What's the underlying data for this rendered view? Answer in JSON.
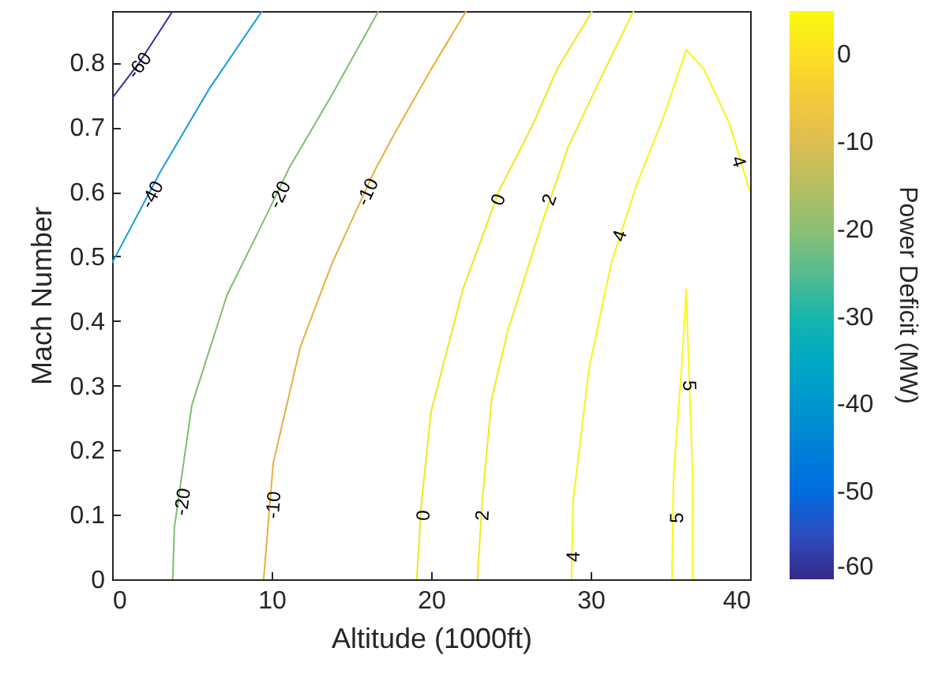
{
  "chart_data": {
    "type": "line",
    "xlabel": "Altitude (1000ft)",
    "ylabel": "Mach Number",
    "clabel": "Power Deficit (MW)",
    "xlim": [
      0,
      40
    ],
    "xticks": [
      0,
      10,
      20,
      30,
      40
    ],
    "ylim": [
      0,
      0.88
    ],
    "yticks": [
      0,
      0.1,
      0.2,
      0.3,
      0.4,
      0.5,
      0.6,
      0.7,
      0.8
    ],
    "clim": [
      -60,
      5
    ],
    "cticks": [
      -60,
      -50,
      -40,
      -30,
      -20,
      -10,
      0
    ],
    "grid": false,
    "series": [
      {
        "color": "#3d2a9e",
        "x": [
          0,
          1.7,
          3.8
        ],
        "values": [
          0.745,
          0.8,
          0.88
        ]
      },
      {
        "color": "#1a9ae0",
        "x": [
          0,
          3.0,
          6.1,
          9.4
        ],
        "values": [
          0.49,
          0.63,
          0.76,
          0.88
        ]
      },
      {
        "color": "#7dbf6e",
        "x": [
          3.8,
          3.9,
          5.0,
          7.2,
          9.5,
          11.1,
          13.8,
          16.7
        ],
        "values": [
          0,
          0.08,
          0.27,
          0.44,
          0.555,
          0.637,
          0.751,
          0.88
        ]
      },
      {
        "color": "#e9ae3e",
        "x": [
          9.5,
          10.1,
          11.8,
          13.8,
          16.4,
          17.7,
          20.0,
          22.2
        ],
        "values": [
          0,
          0.18,
          0.36,
          0.49,
          0.63,
          0.69,
          0.79,
          0.88
        ]
      },
      {
        "color": "#f0e61c",
        "x": [
          19.1,
          19.4,
          20.0,
          22.0,
          24.3,
          26.3,
          27.9,
          30.1
        ],
        "values": [
          0,
          0.12,
          0.26,
          0.45,
          0.604,
          0.7,
          0.79,
          0.88
        ]
      },
      {
        "color": "#f5ea18",
        "x": [
          22.9,
          23.2,
          23.8,
          24.8,
          27.0,
          28.6,
          30.9,
          32.7
        ],
        "values": [
          0,
          0.12,
          0.28,
          0.384,
          0.555,
          0.67,
          0.79,
          0.88
        ]
      },
      {
        "color": "#f8f215",
        "x": [
          28.8,
          28.9,
          29.9,
          31.3,
          32.9,
          34.6,
          36.0,
          37.1,
          38.7,
          40.0
        ],
        "values": [
          0,
          0.12,
          0.327,
          0.49,
          0.612,
          0.718,
          0.82,
          0.79,
          0.706,
          0.6
        ]
      },
      {
        "color": "#faf814",
        "x": [
          35.1,
          35.2,
          35.7,
          36.0,
          36.1,
          36.4,
          36.4
        ],
        "values": [
          0,
          0.16,
          0.327,
          0.449,
          0.368,
          0.16,
          0
        ]
      }
    ],
    "annotations": [
      {
        "text": "-60",
        "x": 1.7,
        "y": 0.796
      },
      {
        "text": "-40",
        "x": 2.5,
        "y": 0.596
      },
      {
        "text": "-20",
        "x": 10.5,
        "y": 0.596
      },
      {
        "text": "-20",
        "x": 4.4,
        "y": 0.12
      },
      {
        "text": "-10",
        "x": 16.0,
        "y": 0.6
      },
      {
        "text": "-10",
        "x": 10.1,
        "y": 0.115
      },
      {
        "text": "0",
        "x": 24.2,
        "y": 0.588
      },
      {
        "text": "0",
        "x": 19.5,
        "y": 0.099
      },
      {
        "text": "2",
        "x": 27.4,
        "y": 0.588
      },
      {
        "text": "2",
        "x": 23.2,
        "y": 0.099
      },
      {
        "text": "4",
        "x": 31.8,
        "y": 0.532
      },
      {
        "text": "4",
        "x": 28.9,
        "y": 0.035
      },
      {
        "text": "4",
        "x": 39.3,
        "y": 0.647
      },
      {
        "text": "5",
        "x": 36.2,
        "y": 0.3
      },
      {
        "text": "5",
        "x": 35.4,
        "y": 0.095
      }
    ]
  }
}
